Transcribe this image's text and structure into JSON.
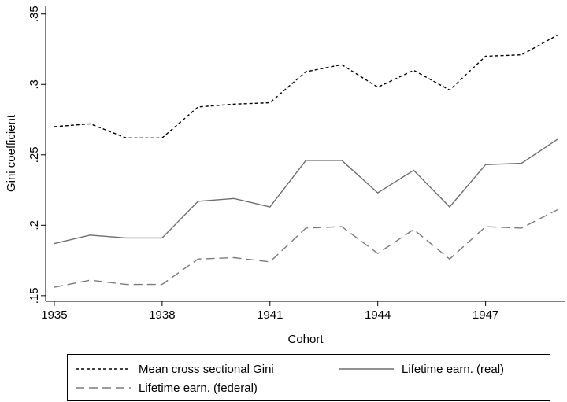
{
  "chart_data": {
    "type": "line",
    "x_label": "Cohort",
    "y_label": "Gini coefficient",
    "x": [
      1935,
      1936,
      1937,
      1938,
      1939,
      1940,
      1941,
      1942,
      1943,
      1944,
      1945,
      1946,
      1947,
      1948,
      1949
    ],
    "series": [
      {
        "name": "Mean cross sectional Gini",
        "color": "#000000",
        "line_style": "short-dash",
        "values": [
          0.27,
          0.272,
          0.262,
          0.262,
          0.284,
          0.286,
          0.287,
          0.309,
          0.314,
          0.298,
          0.31,
          0.296,
          0.32,
          0.321,
          0.335
        ]
      },
      {
        "name": "Lifetime earn. (real)",
        "color": "#6e6e6e",
        "line_style": "solid",
        "values": [
          0.187,
          0.193,
          0.191,
          0.191,
          0.217,
          0.219,
          0.213,
          0.246,
          0.246,
          0.223,
          0.239,
          0.213,
          0.243,
          0.244,
          0.261
        ]
      },
      {
        "name": "Lifetime earn. (federal)",
        "color": "#7a7a7a",
        "line_style": "long-dash",
        "values": [
          0.156,
          0.161,
          0.158,
          0.158,
          0.176,
          0.177,
          0.174,
          0.198,
          0.199,
          0.18,
          0.197,
          0.176,
          0.199,
          0.198,
          0.211
        ]
      }
    ],
    "xlim": [
      1934.76,
      1949.2
    ],
    "xticks": [
      1935,
      1938,
      1941,
      1944,
      1947
    ],
    "ylim": [
      0.146,
      0.356
    ],
    "yticks": [
      {
        "value": 0.15,
        "label": ".15"
      },
      {
        "value": 0.2,
        "label": ".2"
      },
      {
        "value": 0.25,
        "label": ".25"
      },
      {
        "value": 0.3,
        "label": ".3"
      },
      {
        "value": 0.35,
        "label": ".35"
      }
    ],
    "grid": false
  }
}
